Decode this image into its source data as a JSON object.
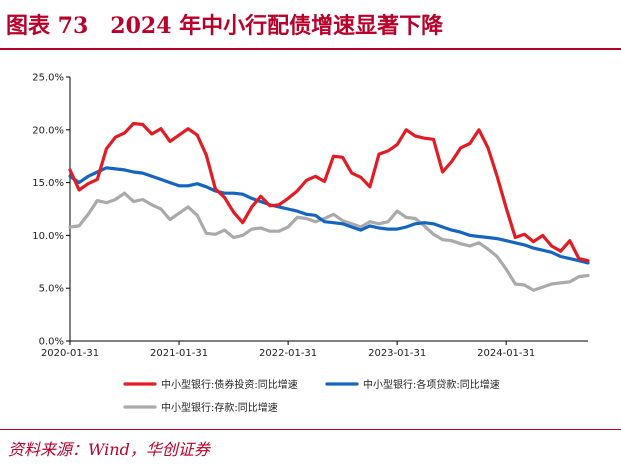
{
  "title": "图表 73　2024 年中小行配债增速显著下降",
  "source": "资料来源：Wind，华创证券",
  "colors": {
    "accent": "#b8002a",
    "red": "#e31b23",
    "blue": "#1565c0",
    "gray": "#aaaaaa"
  },
  "chart_data": {
    "type": "line",
    "ylim": [
      0,
      25
    ],
    "y_ticks": [
      "0.0%",
      "5.0%",
      "10.0%",
      "15.0%",
      "20.0%",
      "25.0%"
    ],
    "x_ticks": [
      "2020-01-31",
      "2021-01-31",
      "2022-01-31",
      "2023-01-31",
      "2024-01-31"
    ],
    "x_start": "2020-01",
    "x_end": "2024-10",
    "grid": false,
    "legend_position": "bottom",
    "series": [
      {
        "name": "中小型银行:债券投资:同比增速",
        "color": "#e31b23",
        "values": [
          16.2,
          14.3,
          14.9,
          15.3,
          18.2,
          19.3,
          19.7,
          20.6,
          20.5,
          19.6,
          20.1,
          18.9,
          19.5,
          20.1,
          19.5,
          17.6,
          14.4,
          13.6,
          12.2,
          11.2,
          12.7,
          13.7,
          12.8,
          12.9,
          13.5,
          14.2,
          15.2,
          15.6,
          15.1,
          17.5,
          17.4,
          15.9,
          15.5,
          14.6,
          17.7,
          18.0,
          18.6,
          20.0,
          19.4,
          19.2,
          19.1,
          16.0,
          17.0,
          18.3,
          18.7,
          20.0,
          18.3,
          15.6,
          12.6,
          9.8,
          10.1,
          9.4,
          10.0,
          9.0,
          8.5,
          9.5,
          7.8,
          7.6
        ]
      },
      {
        "name": "中小型银行:各项贷款:同比增速",
        "color": "#1565c0",
        "values": [
          15.6,
          15.0,
          15.6,
          16.0,
          16.4,
          16.3,
          16.2,
          16.0,
          15.9,
          15.6,
          15.3,
          15.0,
          14.7,
          14.7,
          14.9,
          14.6,
          14.2,
          14.0,
          14.0,
          13.9,
          13.5,
          13.2,
          12.9,
          12.7,
          12.5,
          12.3,
          12.0,
          11.9,
          11.3,
          11.2,
          11.1,
          10.8,
          10.5,
          10.9,
          10.7,
          10.6,
          10.6,
          10.8,
          11.1,
          11.2,
          11.1,
          10.8,
          10.5,
          10.3,
          10.0,
          9.9,
          9.8,
          9.7,
          9.5,
          9.3,
          9.1,
          8.8,
          8.6,
          8.4,
          8.0,
          7.8,
          7.6,
          7.4
        ]
      },
      {
        "name": "中小型银行:存款:同比增速",
        "color": "#aaaaaa",
        "values": [
          10.8,
          10.9,
          12.0,
          13.3,
          13.1,
          13.4,
          14.0,
          13.2,
          13.4,
          12.9,
          12.5,
          11.5,
          12.1,
          12.7,
          11.9,
          10.2,
          10.1,
          10.5,
          9.8,
          10.0,
          10.6,
          10.7,
          10.4,
          10.4,
          10.8,
          11.7,
          11.6,
          11.3,
          11.6,
          12.0,
          11.4,
          11.1,
          10.8,
          11.3,
          11.1,
          11.3,
          12.3,
          11.7,
          11.6,
          10.9,
          10.1,
          9.6,
          9.5,
          9.2,
          9.0,
          9.3,
          8.7,
          8.0,
          6.8,
          5.4,
          5.3,
          4.8,
          5.1,
          5.4,
          5.5,
          5.6,
          6.1,
          6.2
        ]
      }
    ]
  }
}
